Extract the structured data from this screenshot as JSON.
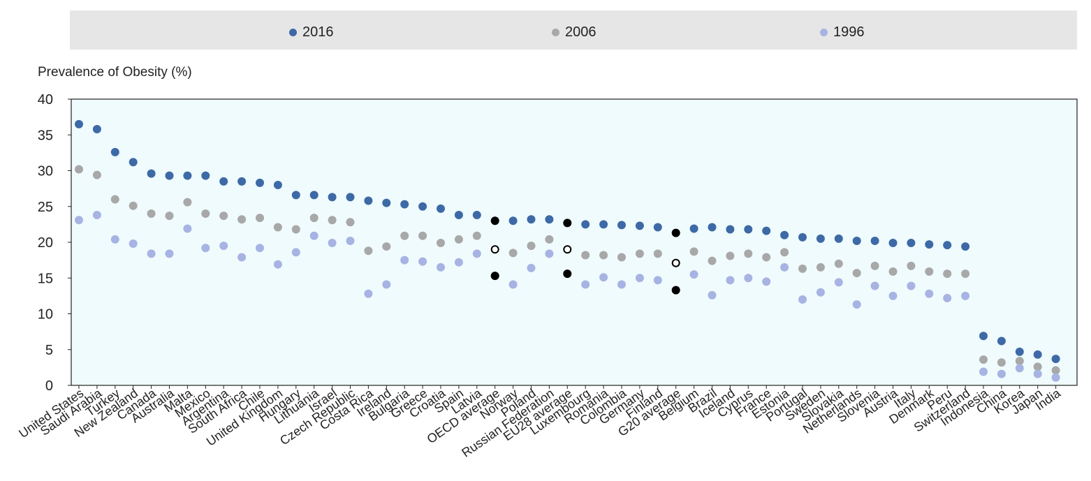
{
  "legend": [
    {
      "label": "2016",
      "color": "#3d6aa6"
    },
    {
      "label": "2006",
      "color": "#a8a8a8"
    },
    {
      "label": "1996",
      "color": "#a7b3e3"
    }
  ],
  "chart_data": {
    "type": "scatter",
    "title": "",
    "xlabel": "",
    "ylabel": "Prevalence of Obesity (%)",
    "ylim": [
      0,
      40
    ],
    "yticks": [
      0,
      5,
      10,
      15,
      20,
      25,
      30,
      35,
      40
    ],
    "grid": false,
    "legend_position": "top",
    "average_marker_color": "#000000",
    "categories": [
      "United States",
      "Saudi Arabia",
      "Turkey",
      "New Zealand",
      "Canada",
      "Australia",
      "Malta",
      "Mexico",
      "Argentina",
      "South Africa",
      "Chile",
      "United Kingdom",
      "Hungary",
      "Lithuania",
      "Israel",
      "Czech Republic",
      "Costa Rica",
      "Ireland",
      "Bulgaria",
      "Greece",
      "Croatia",
      "Spain",
      "Latvia",
      "OECD average",
      "Norway",
      "Poland",
      "Russian Federation",
      "EU28 average",
      "Luxembourg",
      "Romania",
      "Colombia",
      "Germany",
      "Finland",
      "G20 average",
      "Belgium",
      "Brazil",
      "Iceland",
      "Cyprus",
      "France",
      "Estonia",
      "Portugal",
      "Sweden",
      "Slovakia",
      "Netherlands",
      "Slovenia",
      "Austria",
      "Italy",
      "Denmark",
      "Peru",
      "Switzerland",
      "Indonesia",
      "China",
      "Korea",
      "Japan",
      "India"
    ],
    "averages": [
      "OECD average",
      "EU28 average",
      "G20 average"
    ],
    "series": [
      {
        "name": "2016",
        "color": "#3d6aa6",
        "values": [
          36.5,
          35.8,
          32.6,
          31.2,
          29.6,
          29.3,
          29.3,
          29.3,
          28.5,
          28.5,
          28.3,
          28.0,
          26.6,
          26.6,
          26.3,
          26.3,
          25.8,
          25.5,
          25.3,
          25.0,
          24.7,
          23.8,
          23.8,
          23.0,
          23.0,
          23.2,
          23.2,
          22.7,
          22.5,
          22.5,
          22.4,
          22.3,
          22.1,
          21.3,
          21.9,
          22.1,
          21.8,
          21.8,
          21.6,
          21.0,
          20.7,
          20.5,
          20.5,
          20.2,
          20.2,
          19.9,
          19.9,
          19.7,
          19.6,
          19.4,
          6.9,
          6.2,
          4.7,
          4.3,
          3.7
        ]
      },
      {
        "name": "2006",
        "color": "#a8a8a8",
        "values": [
          30.2,
          29.4,
          26.0,
          25.1,
          24.0,
          23.7,
          25.6,
          24.0,
          23.7,
          23.2,
          23.4,
          22.1,
          21.8,
          23.4,
          23.1,
          22.8,
          18.8,
          19.4,
          20.9,
          20.9,
          19.9,
          20.4,
          20.9,
          19.0,
          18.5,
          19.5,
          20.4,
          19.0,
          18.2,
          18.2,
          17.9,
          18.4,
          18.4,
          17.1,
          18.7,
          17.4,
          18.1,
          18.4,
          17.9,
          18.6,
          16.3,
          16.5,
          17.0,
          15.7,
          16.7,
          15.9,
          16.7,
          15.9,
          15.6,
          15.6,
          3.6,
          3.2,
          3.4,
          2.6,
          2.1
        ]
      },
      {
        "name": "1996",
        "color": "#a7b3e3",
        "values": [
          23.1,
          23.8,
          20.4,
          19.8,
          18.4,
          18.4,
          21.9,
          19.2,
          19.5,
          17.9,
          19.2,
          16.9,
          18.6,
          20.9,
          19.9,
          20.2,
          12.8,
          14.1,
          17.5,
          17.3,
          16.5,
          17.2,
          18.4,
          15.3,
          14.1,
          16.4,
          18.4,
          15.6,
          14.1,
          15.1,
          14.1,
          15.0,
          14.7,
          13.3,
          15.5,
          12.6,
          14.7,
          15.0,
          14.5,
          16.5,
          12.0,
          13.0,
          14.4,
          11.3,
          13.9,
          12.5,
          13.9,
          12.8,
          12.2,
          12.5,
          1.9,
          1.6,
          2.4,
          1.6,
          1.1
        ]
      }
    ]
  }
}
